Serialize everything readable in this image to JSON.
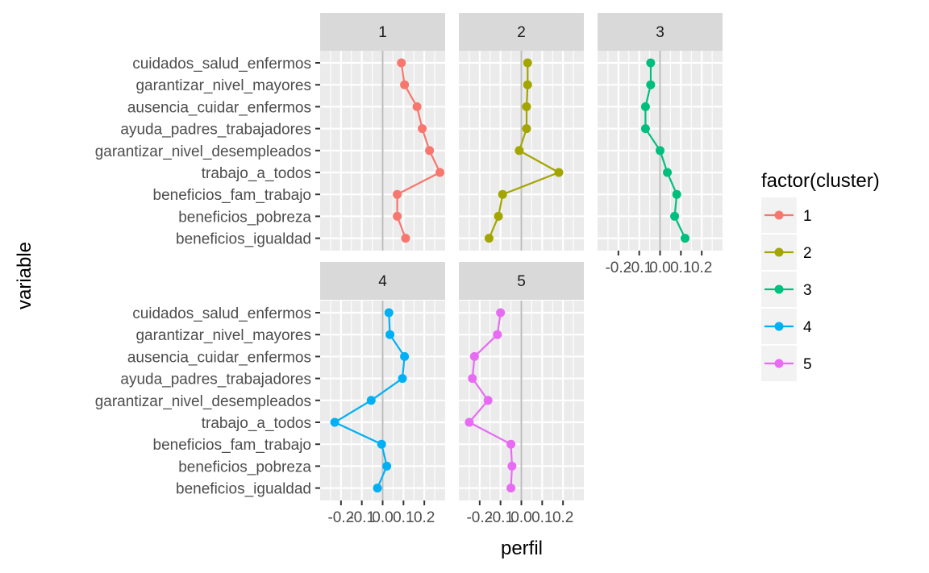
{
  "chart_data": {
    "type": "line",
    "xlabel": "perfil",
    "ylabel": "variable",
    "xlim": [
      -0.3,
      0.3
    ],
    "x_ticks": [
      "-0.2",
      "-0.1",
      "0.0",
      "0.1",
      "0.2"
    ],
    "x_tick_values": [
      -0.2,
      -0.1,
      0.0,
      0.1,
      0.2
    ],
    "reference_line_x": 0,
    "grid": true,
    "categories": [
      "cuidados_salud_enfermos",
      "garantizar_nivel_mayores",
      "ausencia_cuidar_enfermos",
      "ayuda_padres_trabajadores",
      "garantizar_nivel_desempleados",
      "trabajo_a_todos",
      "beneficios_fam_trabajo",
      "beneficios_pobreza",
      "beneficios_igualdad"
    ],
    "facets": [
      "1",
      "2",
      "3",
      "4",
      "5"
    ],
    "series": [
      {
        "name": "1",
        "color": "#F8766D",
        "values": [
          0.09,
          0.105,
          0.165,
          0.19,
          0.225,
          0.275,
          0.07,
          0.07,
          0.11
        ]
      },
      {
        "name": "2",
        "color": "#A3A500",
        "values": [
          0.03,
          0.03,
          0.025,
          0.025,
          -0.01,
          0.18,
          -0.09,
          -0.11,
          -0.155
        ]
      },
      {
        "name": "3",
        "color": "#00BF7D",
        "values": [
          -0.045,
          -0.045,
          -0.07,
          -0.07,
          0.0,
          0.035,
          0.08,
          0.07,
          0.12
        ]
      },
      {
        "name": "4",
        "color": "#00B0F6",
        "values": [
          0.03,
          0.035,
          0.105,
          0.095,
          -0.055,
          -0.23,
          -0.005,
          0.02,
          -0.025
        ]
      },
      {
        "name": "5",
        "color": "#E76BF3",
        "values": [
          -0.1,
          -0.115,
          -0.225,
          -0.235,
          -0.16,
          -0.25,
          -0.05,
          -0.045,
          -0.05
        ]
      }
    ],
    "legend": {
      "title": "factor(cluster)",
      "position": "right",
      "entries": [
        "1",
        "2",
        "3",
        "4",
        "5"
      ]
    }
  }
}
